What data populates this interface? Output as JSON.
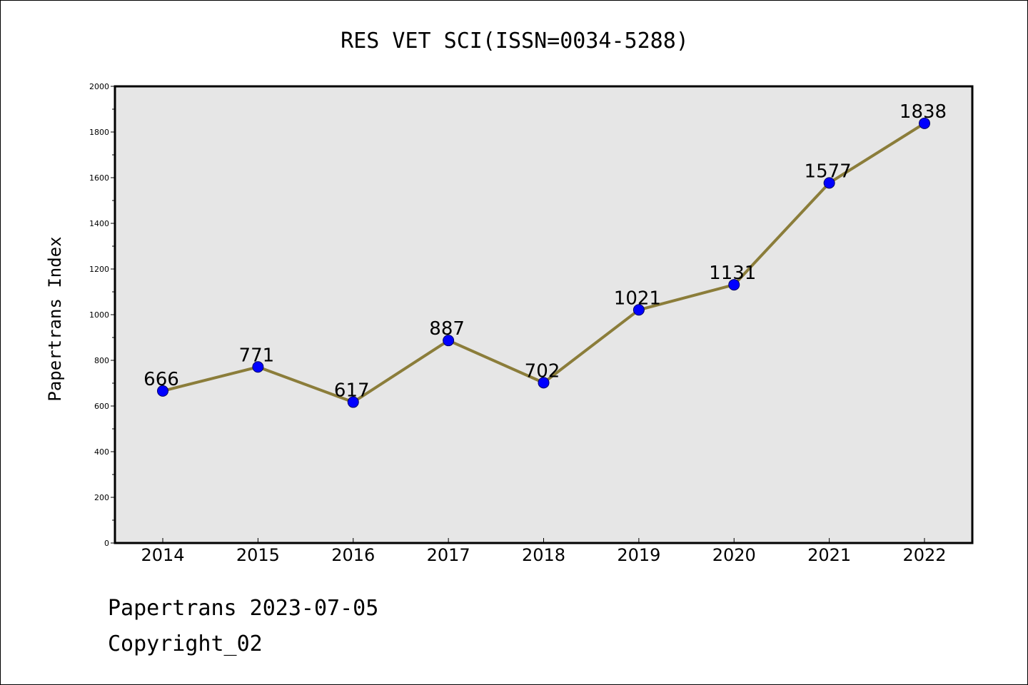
{
  "chart_data": {
    "type": "line",
    "title": "RES VET SCI(ISSN=0034-5288)",
    "xlabel": "",
    "ylabel": "Papertrans Index",
    "categories": [
      "2014",
      "2015",
      "2016",
      "2017",
      "2018",
      "2019",
      "2020",
      "2021",
      "2022"
    ],
    "series": [
      {
        "values": [
          666,
          771,
          617,
          887,
          702,
          1021,
          1131,
          1577,
          1838
        ]
      }
    ],
    "data_labels": [
      "666",
      "771",
      "617",
      "887",
      "702",
      "1021",
      "1131",
      "1577",
      "1838"
    ],
    "ylim": [
      0,
      2000
    ],
    "y_ticks": [
      "0",
      "200",
      "400",
      "600",
      "800",
      "1000",
      "1200",
      "1400",
      "1600",
      "1800",
      "2000"
    ],
    "grid": false,
    "colors": {
      "plot_background": "#e6e6e6",
      "line": "#8b7d3a",
      "marker_fill": "#0000ff",
      "marker_edge": "#000066"
    }
  },
  "footer": {
    "source": "Papertrans 2023-07-05",
    "copyright": "Copyright_02"
  }
}
